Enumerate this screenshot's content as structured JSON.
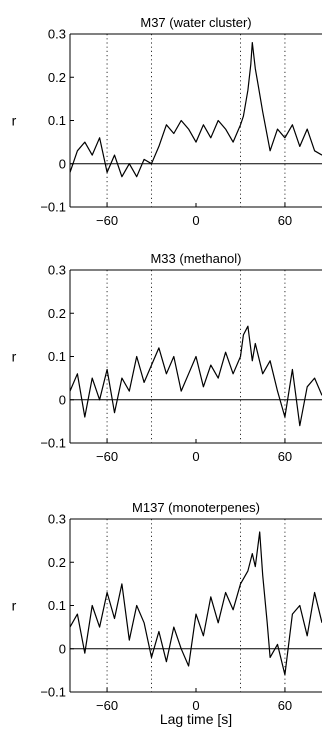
{
  "figure": {
    "xlabel": "Lag time [s]"
  },
  "chart_data": [
    {
      "type": "line",
      "title": "M37 (water cluster)",
      "ylabel": "r",
      "xlim": [
        -85,
        85
      ],
      "ylim": [
        -0.1,
        0.3
      ],
      "xticks": [
        -60,
        0,
        60
      ],
      "xtick_labels": [
        "−60",
        "0",
        "60"
      ],
      "yticks": [
        -0.1,
        0,
        0.1,
        0.2,
        0.3
      ],
      "ytick_labels": [
        "−0.1",
        "0",
        "0.1",
        "0.2",
        "0.3"
      ],
      "vlines": [
        -60,
        -30,
        30,
        60
      ],
      "hline": 0,
      "series": [
        {
          "x": [
            -85,
            -80,
            -75,
            -70,
            -65,
            -60,
            -55,
            -50,
            -45,
            -40,
            -35,
            -30,
            -25,
            -20,
            -15,
            -10,
            -5,
            0,
            5,
            10,
            15,
            20,
            25,
            30,
            32,
            35,
            37,
            38,
            40,
            42,
            45,
            50,
            55,
            60,
            65,
            70,
            75,
            80,
            85
          ],
          "y": [
            -0.02,
            0.03,
            0.05,
            0.02,
            0.06,
            -0.02,
            0.02,
            -0.03,
            0.0,
            -0.03,
            0.01,
            0.0,
            0.04,
            0.09,
            0.07,
            0.1,
            0.08,
            0.05,
            0.09,
            0.06,
            0.1,
            0.08,
            0.05,
            0.09,
            0.11,
            0.17,
            0.23,
            0.28,
            0.22,
            0.18,
            0.12,
            0.03,
            0.08,
            0.06,
            0.09,
            0.04,
            0.08,
            0.03,
            0.02
          ]
        }
      ]
    },
    {
      "type": "line",
      "title": "M33 (methanol)",
      "ylabel": "r",
      "xlim": [
        -85,
        85
      ],
      "ylim": [
        -0.1,
        0.3
      ],
      "xticks": [
        -60,
        0,
        60
      ],
      "xtick_labels": [
        "−60",
        "0",
        "60"
      ],
      "yticks": [
        -0.1,
        0,
        0.1,
        0.2,
        0.3
      ],
      "ytick_labels": [
        "−0.1",
        "0",
        "0.1",
        "0.2",
        "0.3"
      ],
      "vlines": [
        -60,
        -30,
        30,
        60
      ],
      "hline": 0,
      "series": [
        {
          "x": [
            -85,
            -80,
            -75,
            -70,
            -65,
            -60,
            -55,
            -50,
            -45,
            -40,
            -35,
            -30,
            -25,
            -20,
            -15,
            -10,
            -5,
            0,
            5,
            10,
            15,
            20,
            25,
            30,
            32,
            35,
            38,
            40,
            45,
            50,
            55,
            60,
            65,
            70,
            75,
            80,
            85
          ],
          "y": [
            0.02,
            0.06,
            -0.04,
            0.05,
            0.0,
            0.07,
            -0.03,
            0.05,
            0.02,
            0.1,
            0.04,
            0.08,
            0.12,
            0.06,
            0.1,
            0.02,
            0.06,
            0.1,
            0.03,
            0.08,
            0.05,
            0.11,
            0.06,
            0.1,
            0.15,
            0.17,
            0.09,
            0.13,
            0.06,
            0.09,
            0.02,
            -0.04,
            0.07,
            -0.06,
            0.03,
            0.05,
            0.01
          ]
        }
      ]
    },
    {
      "type": "line",
      "title": "M137 (monoterpenes)",
      "ylabel": "r",
      "xlim": [
        -85,
        85
      ],
      "ylim": [
        -0.1,
        0.3
      ],
      "xticks": [
        -60,
        0,
        60
      ],
      "xtick_labels": [
        "−60",
        "0",
        "60"
      ],
      "yticks": [
        -0.1,
        0,
        0.1,
        0.2,
        0.3
      ],
      "ytick_labels": [
        "−0.1",
        "0",
        "0.1",
        "0.2",
        "0.3"
      ],
      "vlines": [
        -60,
        -30,
        30,
        60
      ],
      "hline": 0,
      "series": [
        {
          "x": [
            -85,
            -80,
            -75,
            -70,
            -65,
            -60,
            -55,
            -50,
            -45,
            -40,
            -35,
            -30,
            -25,
            -20,
            -15,
            -10,
            -5,
            0,
            5,
            10,
            15,
            20,
            25,
            30,
            35,
            38,
            40,
            43,
            45,
            48,
            50,
            55,
            60,
            65,
            70,
            75,
            80,
            85
          ],
          "y": [
            0.05,
            0.08,
            -0.01,
            0.1,
            0.05,
            0.13,
            0.07,
            0.15,
            0.02,
            0.1,
            0.06,
            -0.02,
            0.04,
            -0.03,
            0.05,
            0.0,
            -0.04,
            0.08,
            0.03,
            0.12,
            0.06,
            0.13,
            0.09,
            0.15,
            0.18,
            0.22,
            0.19,
            0.27,
            0.17,
            0.06,
            -0.02,
            0.01,
            -0.06,
            0.08,
            0.1,
            0.03,
            0.13,
            0.06
          ]
        }
      ]
    }
  ]
}
